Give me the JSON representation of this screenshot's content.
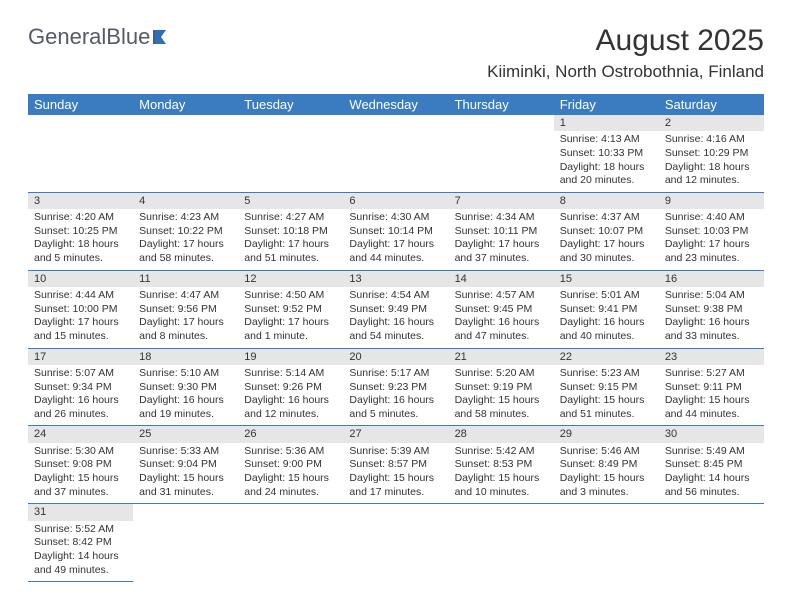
{
  "brand": {
    "name": "GeneralBlue"
  },
  "title": "August 2025",
  "location": "Kiiminki, North Ostrobothnia, Finland",
  "colors": {
    "header_bg": "#3b7bbf",
    "header_text": "#ffffff",
    "cell_border": "#3b7bbf",
    "daynum_bg": "#e6e6e6",
    "body_text": "#333333",
    "logo_text": "#555b66",
    "logo_flag": "#2f6fb3"
  },
  "weekdays": [
    "Sunday",
    "Monday",
    "Tuesday",
    "Wednesday",
    "Thursday",
    "Friday",
    "Saturday"
  ],
  "weeks": [
    [
      null,
      null,
      null,
      null,
      null,
      {
        "d": "1",
        "sr": "Sunrise: 4:13 AM",
        "ss": "Sunset: 10:33 PM",
        "dl1": "Daylight: 18 hours",
        "dl2": "and 20 minutes."
      },
      {
        "d": "2",
        "sr": "Sunrise: 4:16 AM",
        "ss": "Sunset: 10:29 PM",
        "dl1": "Daylight: 18 hours",
        "dl2": "and 12 minutes."
      }
    ],
    [
      {
        "d": "3",
        "sr": "Sunrise: 4:20 AM",
        "ss": "Sunset: 10:25 PM",
        "dl1": "Daylight: 18 hours",
        "dl2": "and 5 minutes."
      },
      {
        "d": "4",
        "sr": "Sunrise: 4:23 AM",
        "ss": "Sunset: 10:22 PM",
        "dl1": "Daylight: 17 hours",
        "dl2": "and 58 minutes."
      },
      {
        "d": "5",
        "sr": "Sunrise: 4:27 AM",
        "ss": "Sunset: 10:18 PM",
        "dl1": "Daylight: 17 hours",
        "dl2": "and 51 minutes."
      },
      {
        "d": "6",
        "sr": "Sunrise: 4:30 AM",
        "ss": "Sunset: 10:14 PM",
        "dl1": "Daylight: 17 hours",
        "dl2": "and 44 minutes."
      },
      {
        "d": "7",
        "sr": "Sunrise: 4:34 AM",
        "ss": "Sunset: 10:11 PM",
        "dl1": "Daylight: 17 hours",
        "dl2": "and 37 minutes."
      },
      {
        "d": "8",
        "sr": "Sunrise: 4:37 AM",
        "ss": "Sunset: 10:07 PM",
        "dl1": "Daylight: 17 hours",
        "dl2": "and 30 minutes."
      },
      {
        "d": "9",
        "sr": "Sunrise: 4:40 AM",
        "ss": "Sunset: 10:03 PM",
        "dl1": "Daylight: 17 hours",
        "dl2": "and 23 minutes."
      }
    ],
    [
      {
        "d": "10",
        "sr": "Sunrise: 4:44 AM",
        "ss": "Sunset: 10:00 PM",
        "dl1": "Daylight: 17 hours",
        "dl2": "and 15 minutes."
      },
      {
        "d": "11",
        "sr": "Sunrise: 4:47 AM",
        "ss": "Sunset: 9:56 PM",
        "dl1": "Daylight: 17 hours",
        "dl2": "and 8 minutes."
      },
      {
        "d": "12",
        "sr": "Sunrise: 4:50 AM",
        "ss": "Sunset: 9:52 PM",
        "dl1": "Daylight: 17 hours",
        "dl2": "and 1 minute."
      },
      {
        "d": "13",
        "sr": "Sunrise: 4:54 AM",
        "ss": "Sunset: 9:49 PM",
        "dl1": "Daylight: 16 hours",
        "dl2": "and 54 minutes."
      },
      {
        "d": "14",
        "sr": "Sunrise: 4:57 AM",
        "ss": "Sunset: 9:45 PM",
        "dl1": "Daylight: 16 hours",
        "dl2": "and 47 minutes."
      },
      {
        "d": "15",
        "sr": "Sunrise: 5:01 AM",
        "ss": "Sunset: 9:41 PM",
        "dl1": "Daylight: 16 hours",
        "dl2": "and 40 minutes."
      },
      {
        "d": "16",
        "sr": "Sunrise: 5:04 AM",
        "ss": "Sunset: 9:38 PM",
        "dl1": "Daylight: 16 hours",
        "dl2": "and 33 minutes."
      }
    ],
    [
      {
        "d": "17",
        "sr": "Sunrise: 5:07 AM",
        "ss": "Sunset: 9:34 PM",
        "dl1": "Daylight: 16 hours",
        "dl2": "and 26 minutes."
      },
      {
        "d": "18",
        "sr": "Sunrise: 5:10 AM",
        "ss": "Sunset: 9:30 PM",
        "dl1": "Daylight: 16 hours",
        "dl2": "and 19 minutes."
      },
      {
        "d": "19",
        "sr": "Sunrise: 5:14 AM",
        "ss": "Sunset: 9:26 PM",
        "dl1": "Daylight: 16 hours",
        "dl2": "and 12 minutes."
      },
      {
        "d": "20",
        "sr": "Sunrise: 5:17 AM",
        "ss": "Sunset: 9:23 PM",
        "dl1": "Daylight: 16 hours",
        "dl2": "and 5 minutes."
      },
      {
        "d": "21",
        "sr": "Sunrise: 5:20 AM",
        "ss": "Sunset: 9:19 PM",
        "dl1": "Daylight: 15 hours",
        "dl2": "and 58 minutes."
      },
      {
        "d": "22",
        "sr": "Sunrise: 5:23 AM",
        "ss": "Sunset: 9:15 PM",
        "dl1": "Daylight: 15 hours",
        "dl2": "and 51 minutes."
      },
      {
        "d": "23",
        "sr": "Sunrise: 5:27 AM",
        "ss": "Sunset: 9:11 PM",
        "dl1": "Daylight: 15 hours",
        "dl2": "and 44 minutes."
      }
    ],
    [
      {
        "d": "24",
        "sr": "Sunrise: 5:30 AM",
        "ss": "Sunset: 9:08 PM",
        "dl1": "Daylight: 15 hours",
        "dl2": "and 37 minutes."
      },
      {
        "d": "25",
        "sr": "Sunrise: 5:33 AM",
        "ss": "Sunset: 9:04 PM",
        "dl1": "Daylight: 15 hours",
        "dl2": "and 31 minutes."
      },
      {
        "d": "26",
        "sr": "Sunrise: 5:36 AM",
        "ss": "Sunset: 9:00 PM",
        "dl1": "Daylight: 15 hours",
        "dl2": "and 24 minutes."
      },
      {
        "d": "27",
        "sr": "Sunrise: 5:39 AM",
        "ss": "Sunset: 8:57 PM",
        "dl1": "Daylight: 15 hours",
        "dl2": "and 17 minutes."
      },
      {
        "d": "28",
        "sr": "Sunrise: 5:42 AM",
        "ss": "Sunset: 8:53 PM",
        "dl1": "Daylight: 15 hours",
        "dl2": "and 10 minutes."
      },
      {
        "d": "29",
        "sr": "Sunrise: 5:46 AM",
        "ss": "Sunset: 8:49 PM",
        "dl1": "Daylight: 15 hours",
        "dl2": "and 3 minutes."
      },
      {
        "d": "30",
        "sr": "Sunrise: 5:49 AM",
        "ss": "Sunset: 8:45 PM",
        "dl1": "Daylight: 14 hours",
        "dl2": "and 56 minutes."
      }
    ],
    [
      {
        "d": "31",
        "sr": "Sunrise: 5:52 AM",
        "ss": "Sunset: 8:42 PM",
        "dl1": "Daylight: 14 hours",
        "dl2": "and 49 minutes."
      },
      null,
      null,
      null,
      null,
      null,
      null
    ]
  ]
}
